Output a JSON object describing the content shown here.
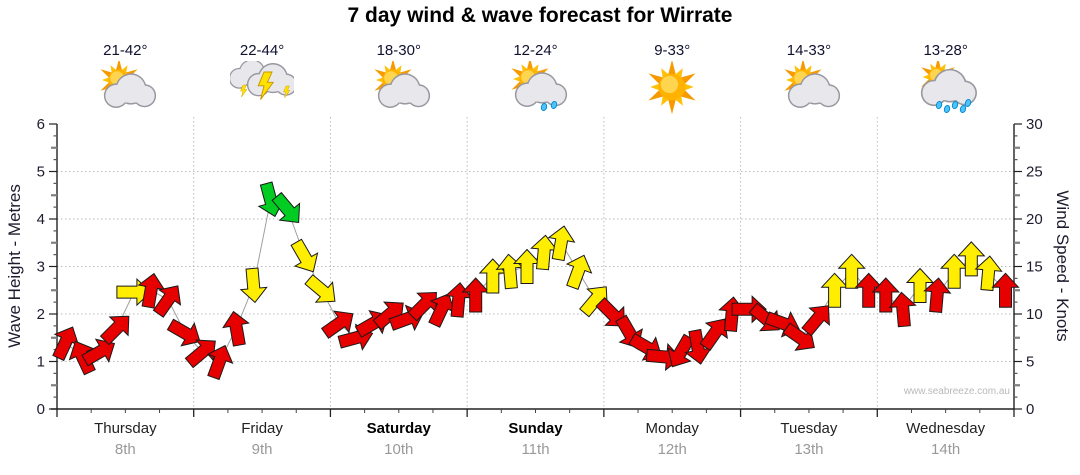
{
  "title": "7 day wind & wave forecast for Wirrate",
  "watermark": "www.seabreeze.com.au",
  "days": [
    {
      "name": "Thursday",
      "date": "8th",
      "temp": "21-42°",
      "icon": "sun-cloud-icon",
      "weekend": false
    },
    {
      "name": "Friday",
      "date": "9th",
      "temp": "22-44°",
      "icon": "storm-icon",
      "weekend": false
    },
    {
      "name": "Saturday",
      "date": "10th",
      "temp": "18-30°",
      "icon": "sun-cloud-icon",
      "weekend": true
    },
    {
      "name": "Sunday",
      "date": "11th",
      "temp": "12-24°",
      "icon": "sun-cloud-showers-icon",
      "weekend": true
    },
    {
      "name": "Monday",
      "date": "12th",
      "temp": "9-33°",
      "icon": "sun-icon",
      "weekend": false
    },
    {
      "name": "Tuesday",
      "date": "13th",
      "temp": "14-33°",
      "icon": "sun-cloud-icon",
      "weekend": false
    },
    {
      "name": "Wednesday",
      "date": "14th",
      "temp": "13-28°",
      "icon": "sun-cloud-rain-icon",
      "weekend": false
    }
  ],
  "chart_data": {
    "type": "line",
    "subtype": "wind-direction-arrows",
    "title": "7 day wind & wave forecast for Wirrate",
    "left_axis": {
      "label": "Wave Height - Metres",
      "min": 0,
      "max": 6,
      "major_ticks": [
        0,
        1,
        2,
        3,
        4,
        5,
        6
      ]
    },
    "right_axis": {
      "label": "Wind Speed - Knots",
      "min": 0,
      "max": 30,
      "major_ticks": [
        0,
        5,
        10,
        15,
        20,
        25,
        30
      ]
    },
    "x_axis": {
      "days": 7,
      "points_per_day": 8,
      "grid": true
    },
    "colors": {
      "r": "#E60000",
      "y": "#FFEE00",
      "g": "#00CC22",
      "trace": "#A0A0A0",
      "grid": "#BBBBBB"
    },
    "legend_note": "arrow color = wind strength (red light, yellow moderate, green fresh); arrow angle = wind direction; height = knots",
    "points": [
      {
        "knots": 7,
        "dir": 25,
        "c": "r"
      },
      {
        "knots": 5.5,
        "dir": 335,
        "c": "r"
      },
      {
        "knots": 6,
        "dir": 60,
        "c": "r"
      },
      {
        "knots": 8.5,
        "dir": 45,
        "c": "r"
      },
      {
        "knots": 12.3,
        "dir": 90,
        "c": "y"
      },
      {
        "knots": 12.5,
        "dir": 10,
        "c": "r"
      },
      {
        "knots": 11.5,
        "dir": 35,
        "c": "r"
      },
      {
        "knots": 8,
        "dir": 120,
        "c": "r"
      },
      {
        "knots": 6,
        "dir": 50,
        "c": "r"
      },
      {
        "knots": 5,
        "dir": 20,
        "c": "r"
      },
      {
        "knots": 8.5,
        "dir": 350,
        "c": "r"
      },
      {
        "knots": 13,
        "dir": 175,
        "c": "y"
      },
      {
        "knots": 22,
        "dir": 165,
        "c": "g"
      },
      {
        "knots": 21,
        "dir": 140,
        "c": "g"
      },
      {
        "knots": 16,
        "dir": 150,
        "c": "y"
      },
      {
        "knots": 12.5,
        "dir": 130,
        "c": "y"
      },
      {
        "knots": 9,
        "dir": 55,
        "c": "r"
      },
      {
        "knots": 7.5,
        "dir": 75,
        "c": "r"
      },
      {
        "knots": 9,
        "dir": 60,
        "c": "r"
      },
      {
        "knots": 10,
        "dir": 50,
        "c": "r"
      },
      {
        "knots": 9.5,
        "dir": 70,
        "c": "r"
      },
      {
        "knots": 11,
        "dir": 45,
        "c": "r"
      },
      {
        "knots": 10.5,
        "dir": 25,
        "c": "r"
      },
      {
        "knots": 11.5,
        "dir": 5,
        "c": "r"
      },
      {
        "knots": 12,
        "dir": 0,
        "c": "r"
      },
      {
        "knots": 14,
        "dir": 0,
        "c": "y"
      },
      {
        "knots": 14.5,
        "dir": 355,
        "c": "y"
      },
      {
        "knots": 15,
        "dir": 0,
        "c": "y"
      },
      {
        "knots": 16.5,
        "dir": 5,
        "c": "y"
      },
      {
        "knots": 17.5,
        "dir": 10,
        "c": "y"
      },
      {
        "knots": 14.5,
        "dir": 20,
        "c": "y"
      },
      {
        "knots": 11.5,
        "dir": 40,
        "c": "y"
      },
      {
        "knots": 10,
        "dir": 135,
        "c": "r"
      },
      {
        "knots": 8,
        "dir": 150,
        "c": "r"
      },
      {
        "knots": 6.5,
        "dir": 120,
        "c": "r"
      },
      {
        "knots": 5.5,
        "dir": 95,
        "c": "r"
      },
      {
        "knots": 6,
        "dir": 210,
        "c": "r"
      },
      {
        "knots": 6.5,
        "dir": 170,
        "c": "r"
      },
      {
        "knots": 8,
        "dir": 35,
        "c": "r"
      },
      {
        "knots": 10,
        "dir": 5,
        "c": "r"
      },
      {
        "knots": 10.5,
        "dir": 90,
        "c": "r"
      },
      {
        "knots": 9.5,
        "dir": 130,
        "c": "r"
      },
      {
        "knots": 9,
        "dir": 110,
        "c": "r"
      },
      {
        "knots": 7.5,
        "dir": 125,
        "c": "r"
      },
      {
        "knots": 9.5,
        "dir": 40,
        "c": "r"
      },
      {
        "knots": 12.5,
        "dir": 0,
        "c": "y"
      },
      {
        "knots": 14.5,
        "dir": 0,
        "c": "y"
      },
      {
        "knots": 12.5,
        "dir": 0,
        "c": "r"
      },
      {
        "knots": 12,
        "dir": 0,
        "c": "r"
      },
      {
        "knots": 10.5,
        "dir": 355,
        "c": "r"
      },
      {
        "knots": 13,
        "dir": 0,
        "c": "y"
      },
      {
        "knots": 12,
        "dir": 5,
        "c": "r"
      },
      {
        "knots": 14.5,
        "dir": 0,
        "c": "y"
      },
      {
        "knots": 15.8,
        "dir": 0,
        "c": "y"
      },
      {
        "knots": 14.3,
        "dir": 5,
        "c": "y"
      },
      {
        "knots": 12.5,
        "dir": 0,
        "c": "r"
      }
    ]
  }
}
